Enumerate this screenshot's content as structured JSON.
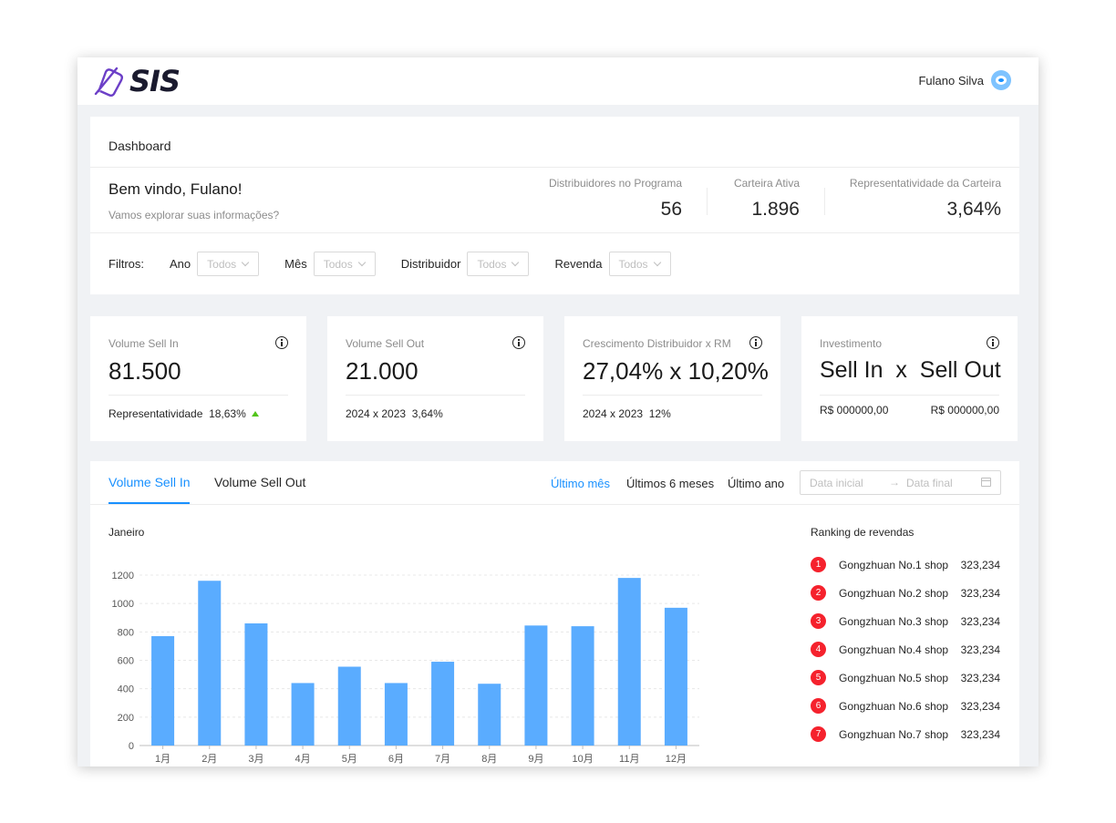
{
  "app": {
    "logo_text": "SIS",
    "user_name": "Fulano Silva"
  },
  "header": {
    "title": "Dashboard",
    "welcome": "Bem vindo, Fulano!",
    "welcome_sub": "Vamos explorar suas informações?",
    "stats": [
      {
        "label": "Distribuidores no Programa",
        "value": "56"
      },
      {
        "label": "Carteira Ativa",
        "value": "1.896"
      },
      {
        "label": "Representatividade da Carteira",
        "value": "3,64%"
      }
    ],
    "filters": {
      "label": "Filtros:",
      "items": [
        {
          "name": "Ano",
          "value": "Todos"
        },
        {
          "name": "Mês",
          "value": "Todos"
        },
        {
          "name": "Distribuidor",
          "value": "Todos"
        },
        {
          "name": "Revenda",
          "value": "Todos"
        }
      ]
    }
  },
  "cards": [
    {
      "label": "Volume Sell In",
      "value": "81.500",
      "foot_label": "Representatividade",
      "foot_value": "18,63%",
      "trend": "up",
      "trend_color": "#52c41a"
    },
    {
      "label": "Volume Sell Out",
      "value": "21.000",
      "foot_label": "2024 x 2023",
      "foot_value": "3,64%"
    },
    {
      "label": "Crescimento Distribuidor x RM",
      "value": "27,04% x 10,20%",
      "foot_label": "2024 x 2023",
      "foot_value": "12%"
    },
    {
      "label": "Investimento",
      "value_left": "Sell In",
      "value_mid": "x",
      "value_right": "Sell Out",
      "foot_left": "R$ 000000,00",
      "foot_right": "R$ 000000,00"
    }
  ],
  "chart_panel": {
    "tabs": [
      {
        "label": "Volume Sell In",
        "active": true
      },
      {
        "label": "Volume Sell Out",
        "active": false
      }
    ],
    "periods": [
      {
        "label": "Último mês",
        "active": true
      },
      {
        "label": "Últimos 6 meses"
      },
      {
        "label": "Último ano"
      }
    ],
    "date_start_placeholder": "Data inicial",
    "date_end_placeholder": "Data final",
    "accent": "#1890ff"
  },
  "chart_data": {
    "type": "bar",
    "title": "Janeiro",
    "xlabel": "",
    "ylabel": "",
    "categories": [
      "1月",
      "2月",
      "3月",
      "4月",
      "5月",
      "6月",
      "7月",
      "8月",
      "9月",
      "10月",
      "11月",
      "12月"
    ],
    "values": [
      770,
      1160,
      860,
      440,
      555,
      440,
      590,
      435,
      845,
      840,
      1180,
      970
    ],
    "ylim": [
      0,
      1200
    ],
    "yticks": [
      0,
      200,
      400,
      600,
      800,
      1000,
      1200
    ],
    "grid": true,
    "bar_color": "#5aacff"
  },
  "ranking": {
    "title": "Ranking de revendas",
    "items": [
      {
        "rank": "1",
        "name": "Gongzhuan No.1 shop",
        "value": "323,234"
      },
      {
        "rank": "2",
        "name": "Gongzhuan No.2 shop",
        "value": "323,234"
      },
      {
        "rank": "3",
        "name": "Gongzhuan No.3 shop",
        "value": "323,234"
      },
      {
        "rank": "4",
        "name": "Gongzhuan No.4 shop",
        "value": "323,234"
      },
      {
        "rank": "5",
        "name": "Gongzhuan No.5 shop",
        "value": "323,234"
      },
      {
        "rank": "6",
        "name": "Gongzhuan No.6 shop",
        "value": "323,234"
      },
      {
        "rank": "7",
        "name": "Gongzhuan No.7 shop",
        "value": "323,234"
      }
    ]
  }
}
